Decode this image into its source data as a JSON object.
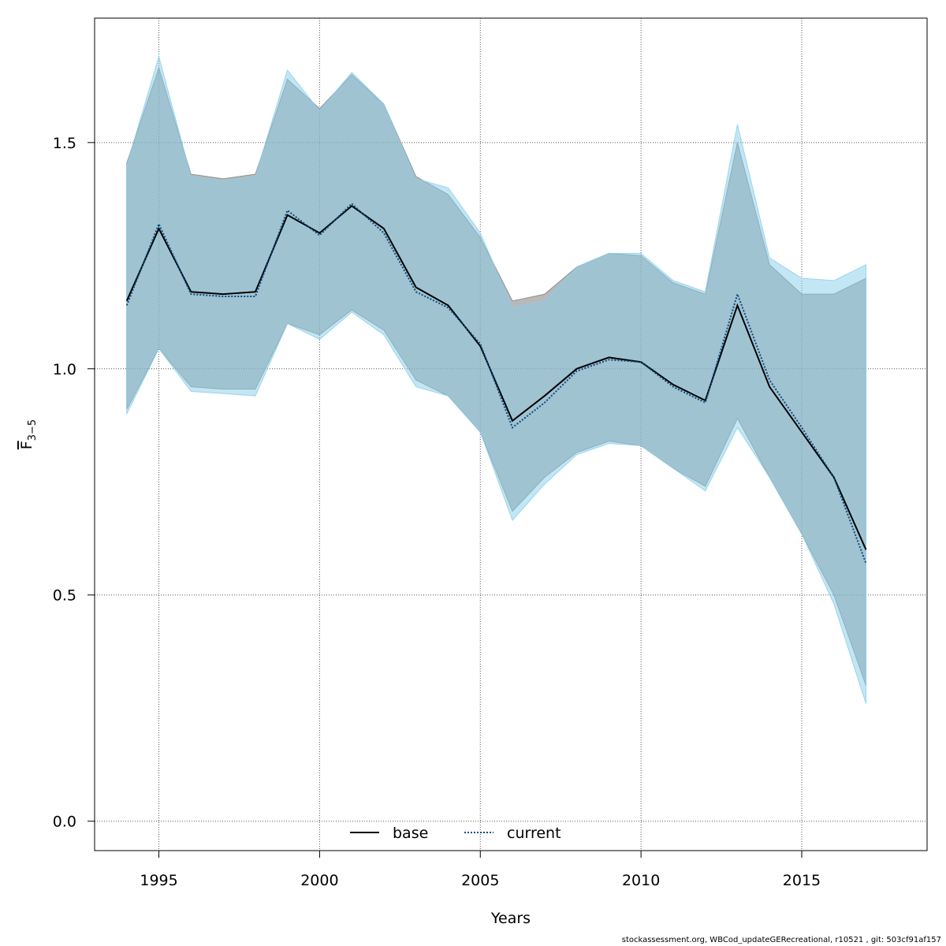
{
  "chart_data": {
    "type": "line",
    "xlabel": "Years",
    "ylabel": {
      "main": "F",
      "sub": "3−5"
    },
    "xlim": [
      1993,
      2018.9
    ],
    "ylim": [
      -0.065,
      1.775
    ],
    "xticks": [
      1995,
      2000,
      2005,
      2010,
      2015
    ],
    "yticks": [
      0.0,
      0.5,
      1.0,
      1.5
    ],
    "ytick_labels": [
      "0.0",
      "0.5",
      "1.0",
      "1.5"
    ],
    "grid": true,
    "legend_position": "bottom-center",
    "x": [
      1994,
      1995,
      1996,
      1997,
      1998,
      1999,
      2000,
      2001,
      2002,
      2003,
      2004,
      2005,
      2006,
      2007,
      2008,
      2009,
      2010,
      2011,
      2012,
      2013,
      2014,
      2015,
      2016,
      2017
    ],
    "series": [
      {
        "name": "base",
        "line_style": "solid",
        "line_color": "#000000",
        "band_color": "#808080",
        "values": [
          1.15,
          1.31,
          1.17,
          1.165,
          1.17,
          1.34,
          1.3,
          1.36,
          1.31,
          1.18,
          1.14,
          1.05,
          0.885,
          0.94,
          1.0,
          1.025,
          1.015,
          0.965,
          0.93,
          1.14,
          0.96,
          0.86,
          0.76,
          0.6
        ],
        "lower": [
          0.91,
          1.045,
          0.96,
          0.955,
          0.955,
          1.1,
          1.075,
          1.13,
          1.085,
          0.975,
          0.94,
          0.86,
          0.685,
          0.76,
          0.815,
          0.84,
          0.83,
          0.78,
          0.74,
          0.89,
          0.76,
          0.635,
          0.5,
          0.3
        ],
        "upper": [
          1.455,
          1.665,
          1.43,
          1.42,
          1.43,
          1.64,
          1.575,
          1.65,
          1.585,
          1.425,
          1.385,
          1.29,
          1.15,
          1.165,
          1.225,
          1.255,
          1.25,
          1.19,
          1.165,
          1.5,
          1.23,
          1.165,
          1.165,
          1.2
        ]
      },
      {
        "name": "current",
        "line_style": "dotted",
        "line_color": "#0a4a80",
        "band_color": "#87CEEB",
        "values": [
          1.14,
          1.32,
          1.165,
          1.16,
          1.16,
          1.35,
          1.295,
          1.365,
          1.3,
          1.17,
          1.135,
          1.055,
          0.87,
          0.925,
          0.995,
          1.02,
          1.015,
          0.96,
          0.925,
          1.165,
          0.975,
          0.87,
          0.76,
          0.57
        ],
        "lower": [
          0.9,
          1.045,
          0.95,
          0.945,
          0.94,
          1.1,
          1.065,
          1.125,
          1.075,
          0.96,
          0.94,
          0.86,
          0.665,
          0.745,
          0.81,
          0.835,
          0.83,
          0.78,
          0.73,
          0.87,
          0.76,
          0.635,
          0.48,
          0.26
        ],
        "upper": [
          1.45,
          1.69,
          1.425,
          1.415,
          1.425,
          1.66,
          1.57,
          1.655,
          1.585,
          1.42,
          1.4,
          1.3,
          1.135,
          1.15,
          1.225,
          1.255,
          1.255,
          1.195,
          1.17,
          1.54,
          1.245,
          1.2,
          1.195,
          1.23
        ]
      }
    ]
  },
  "footer_text": "stockassessment.org, WBCod_updateGERecreational, r10521 , git: 503cf91af157"
}
